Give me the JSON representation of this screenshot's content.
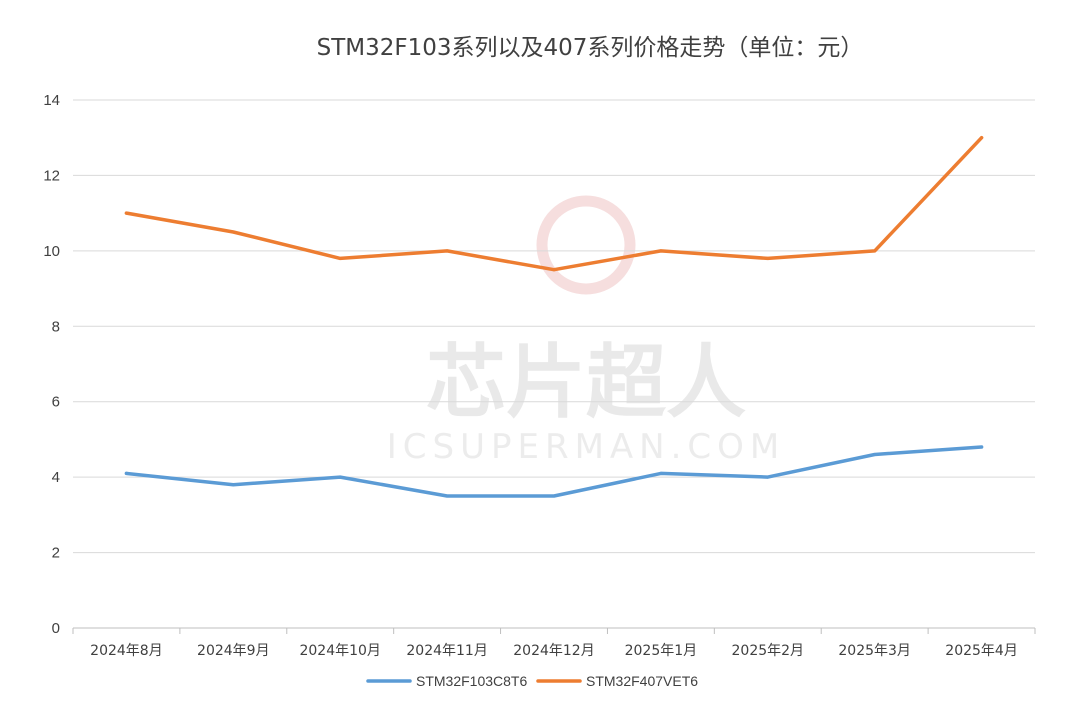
{
  "chart_data": {
    "type": "line",
    "title": "STM32F103系列以及407系列价格走势（单位：元）",
    "categories": [
      "2024年8月",
      "2024年9月",
      "2024年10月",
      "2024年11月",
      "2024年12月",
      "2025年1月",
      "2025年2月",
      "2025年3月",
      "2025年4月"
    ],
    "series": [
      {
        "name": "STM32F103C8T6",
        "color": "#5b9bd5",
        "values": [
          4.1,
          3.8,
          4.0,
          3.5,
          3.5,
          4.1,
          4.0,
          4.6,
          4.8
        ]
      },
      {
        "name": "STM32F407VET6",
        "color": "#ed7d31",
        "values": [
          11.0,
          10.5,
          9.8,
          10.0,
          9.5,
          10.0,
          9.8,
          10.0,
          13.0
        ]
      }
    ],
    "ylim": [
      0,
      14
    ],
    "yticks": [
      "0",
      "2",
      "4",
      "6",
      "8",
      "10",
      "12",
      "14"
    ],
    "grid": true,
    "legend_position": "bottom"
  },
  "watermark": {
    "cn_text": "芯片超人",
    "en_text": "ICSUPERMAN.COM",
    "color": "#e4e4e4"
  }
}
